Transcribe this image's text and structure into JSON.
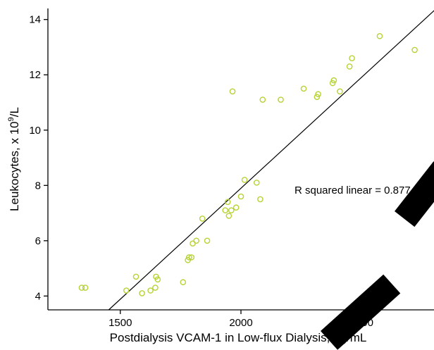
{
  "chart_data": {
    "type": "scatter",
    "xlabel": "Postdialysis VCAM-1 in Low-flux Dialysis, pg/mL",
    "ylabel_main": "Leukocytes, x 10",
    "ylabel_sup": "9",
    "ylabel_tail": "/L",
    "xlim": [
      1200,
      2800
    ],
    "ylim": [
      3.5,
      14.4
    ],
    "xticks": [
      1500,
      2000,
      2500
    ],
    "yticks": [
      4,
      6,
      8,
      10,
      12,
      14
    ],
    "grid": false,
    "point_color": "#b5d334",
    "fit_line": {
      "x": [
        1452,
        2810
      ],
      "y": [
        3.5,
        14.4
      ]
    },
    "annotation": "R squared linear = 0.877",
    "points": [
      {
        "x": 1340,
        "y": 4.3
      },
      {
        "x": 1355,
        "y": 4.3
      },
      {
        "x": 1525,
        "y": 4.2
      },
      {
        "x": 1565,
        "y": 4.7
      },
      {
        "x": 1590,
        "y": 4.1
      },
      {
        "x": 1625,
        "y": 4.2
      },
      {
        "x": 1645,
        "y": 4.3
      },
      {
        "x": 1648,
        "y": 4.7
      },
      {
        "x": 1655,
        "y": 4.6
      },
      {
        "x": 1760,
        "y": 4.5
      },
      {
        "x": 1780,
        "y": 5.3
      },
      {
        "x": 1785,
        "y": 5.4
      },
      {
        "x": 1795,
        "y": 5.4
      },
      {
        "x": 1800,
        "y": 5.9
      },
      {
        "x": 1815,
        "y": 6.0
      },
      {
        "x": 1840,
        "y": 6.8
      },
      {
        "x": 1860,
        "y": 6.0
      },
      {
        "x": 1935,
        "y": 7.1
      },
      {
        "x": 1945,
        "y": 7.4
      },
      {
        "x": 1950,
        "y": 6.9
      },
      {
        "x": 1960,
        "y": 7.1
      },
      {
        "x": 1965,
        "y": 11.4
      },
      {
        "x": 1980,
        "y": 7.2
      },
      {
        "x": 2000,
        "y": 7.6
      },
      {
        "x": 2015,
        "y": 8.2
      },
      {
        "x": 2065,
        "y": 8.1
      },
      {
        "x": 2080,
        "y": 7.5
      },
      {
        "x": 2090,
        "y": 11.1
      },
      {
        "x": 2165,
        "y": 11.1
      },
      {
        "x": 2260,
        "y": 11.5
      },
      {
        "x": 2315,
        "y": 11.2
      },
      {
        "x": 2320,
        "y": 11.3
      },
      {
        "x": 2380,
        "y": 11.7
      },
      {
        "x": 2385,
        "y": 11.8
      },
      {
        "x": 2410,
        "y": 11.4
      },
      {
        "x": 2450,
        "y": 12.3
      },
      {
        "x": 2460,
        "y": 12.6
      },
      {
        "x": 2575,
        "y": 13.4
      },
      {
        "x": 2720,
        "y": 12.9
      }
    ]
  }
}
